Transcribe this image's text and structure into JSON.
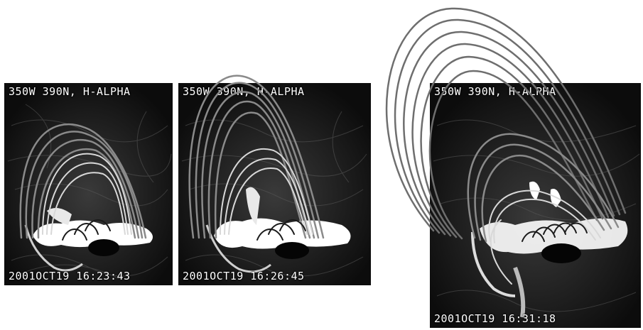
{
  "panels": [
    {
      "id": "p1",
      "header": "350W 390N, H-ALPHA",
      "timestamp": "2001OCT19 16:23:43"
    },
    {
      "id": "p2",
      "header": "350W 390N, H-ALPHA",
      "timestamp": "2001OCT19 16:26:45"
    },
    {
      "id": "p3",
      "header": "350W 390N, H-ALPHA",
      "timestamp": "2001OCT19 16:31:18"
    }
  ],
  "colors": {
    "panel_bg": "#0a0a0a",
    "loop_gray": "#8a8a8a",
    "loop_light": "#d8d8d8",
    "loop_dark": "#1a1a1a",
    "flare_white": "#ffffff"
  }
}
